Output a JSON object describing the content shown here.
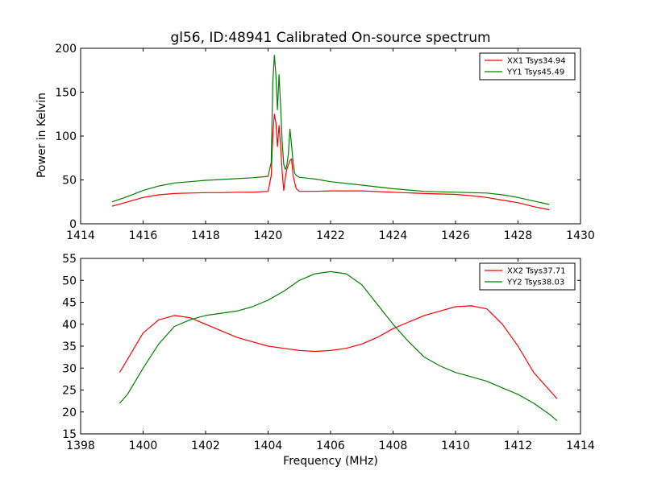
{
  "figure": {
    "title": "gl56, ID:48941 Calibrated On-source spectrum",
    "xlabel": "Frequency (MHz)",
    "ylabel": "Power in Kelvin"
  },
  "chart_data": [
    {
      "type": "line",
      "title": "gl56, ID:48941 Calibrated On-source spectrum",
      "xlabel": "",
      "ylabel": "Power in Kelvin",
      "xlim": [
        1414,
        1430
      ],
      "ylim": [
        0,
        200
      ],
      "xticks": [
        "1414",
        "1416",
        "1418",
        "1420",
        "1422",
        "1424",
        "1426",
        "1428",
        "1430"
      ],
      "yticks": [
        "0",
        "50",
        "100",
        "150",
        "200"
      ],
      "grid": false,
      "legend": "top-right",
      "series": [
        {
          "name": "XX1 Tsys34.94",
          "color": "#ff0000",
          "x": [
            1415.0,
            1415.5,
            1416.0,
            1416.5,
            1417.0,
            1417.5,
            1418.0,
            1418.5,
            1419.0,
            1419.5,
            1420.0,
            1420.1,
            1420.15,
            1420.2,
            1420.25,
            1420.3,
            1420.35,
            1420.4,
            1420.45,
            1420.5,
            1420.55,
            1420.6,
            1420.7,
            1420.75,
            1420.8,
            1420.9,
            1421.0,
            1421.5,
            1422.0,
            1423.0,
            1424.0,
            1425.0,
            1426.0,
            1426.5,
            1427.0,
            1427.5,
            1428.0,
            1428.5,
            1429.0
          ],
          "y": [
            20,
            25,
            30,
            33,
            34.5,
            35,
            35.5,
            35.5,
            36,
            36,
            37,
            55,
            100,
            125,
            115,
            88,
            112,
            90,
            60,
            38,
            52,
            62,
            72,
            74,
            55,
            40,
            37,
            37,
            37.5,
            37.5,
            36,
            34.5,
            33.5,
            32,
            30,
            27,
            24,
            19.5,
            16
          ]
        },
        {
          "name": "YY1 Tsys45.49",
          "color": "#008000",
          "x": [
            1415.0,
            1415.5,
            1416.0,
            1416.5,
            1417.0,
            1417.5,
            1418.0,
            1418.5,
            1419.0,
            1419.5,
            1420.0,
            1420.1,
            1420.15,
            1420.2,
            1420.25,
            1420.3,
            1420.35,
            1420.4,
            1420.45,
            1420.5,
            1420.55,
            1420.6,
            1420.65,
            1420.7,
            1420.75,
            1420.8,
            1420.85,
            1420.9,
            1421.0,
            1421.5,
            1422.0,
            1423.0,
            1424.0,
            1425.0,
            1426.0,
            1427.0,
            1427.5,
            1428.0,
            1428.5,
            1429.0
          ],
          "y": [
            25,
            31,
            38,
            43,
            46.5,
            48,
            49.5,
            50.5,
            51.5,
            52.5,
            54,
            70,
            160,
            192,
            170,
            130,
            170,
            135,
            95,
            68,
            62,
            66,
            80,
            108,
            90,
            70,
            58,
            55,
            53,
            51,
            48,
            44,
            40,
            37,
            36,
            35,
            33,
            30,
            26,
            22
          ]
        }
      ]
    },
    {
      "type": "line",
      "title": "",
      "xlabel": "Frequency (MHz)",
      "ylabel": "",
      "xlim": [
        1398,
        1414
      ],
      "ylim": [
        15,
        55
      ],
      "xticks": [
        "1398",
        "1400",
        "1402",
        "1404",
        "1406",
        "1408",
        "1410",
        "1412",
        "1414"
      ],
      "yticks": [
        "15",
        "20",
        "25",
        "30",
        "35",
        "40",
        "45",
        "50",
        "55"
      ],
      "grid": false,
      "legend": "top-right",
      "series": [
        {
          "name": "XX2 Tsys37.71",
          "color": "#ff0000",
          "x": [
            1399.25,
            1399.5,
            1400.0,
            1400.5,
            1401.0,
            1401.5,
            1402.0,
            1402.5,
            1403.0,
            1403.5,
            1404.0,
            1404.5,
            1405.0,
            1405.5,
            1406.0,
            1406.5,
            1407.0,
            1407.5,
            1408.0,
            1408.5,
            1409.0,
            1409.5,
            1410.0,
            1410.5,
            1411.0,
            1411.5,
            1412.0,
            1412.5,
            1413.0,
            1413.25
          ],
          "y": [
            29,
            32,
            38,
            41,
            42,
            41.5,
            40,
            38.5,
            37,
            36,
            35,
            34.5,
            34,
            33.8,
            34,
            34.5,
            35.5,
            37,
            39,
            40.5,
            42,
            43,
            44,
            44.2,
            43.5,
            40,
            35,
            29,
            25,
            23
          ]
        },
        {
          "name": "YY2 Tsys38.03",
          "color": "#008000",
          "x": [
            1399.25,
            1399.5,
            1400.0,
            1400.5,
            1401.0,
            1401.5,
            1402.0,
            1402.5,
            1403.0,
            1403.5,
            1404.0,
            1404.5,
            1405.0,
            1405.5,
            1406.0,
            1406.5,
            1407.0,
            1407.5,
            1408.0,
            1408.5,
            1409.0,
            1409.5,
            1410.0,
            1410.5,
            1411.0,
            1411.5,
            1412.0,
            1412.5,
            1413.0,
            1413.25
          ],
          "y": [
            22,
            24,
            30,
            35.5,
            39.5,
            41,
            42,
            42.5,
            43,
            44,
            45.5,
            47.5,
            50,
            51.5,
            52,
            51.5,
            49,
            44.5,
            40,
            36,
            32.5,
            30.5,
            29,
            28,
            27,
            25.5,
            24,
            22,
            19.5,
            18
          ]
        }
      ]
    }
  ]
}
